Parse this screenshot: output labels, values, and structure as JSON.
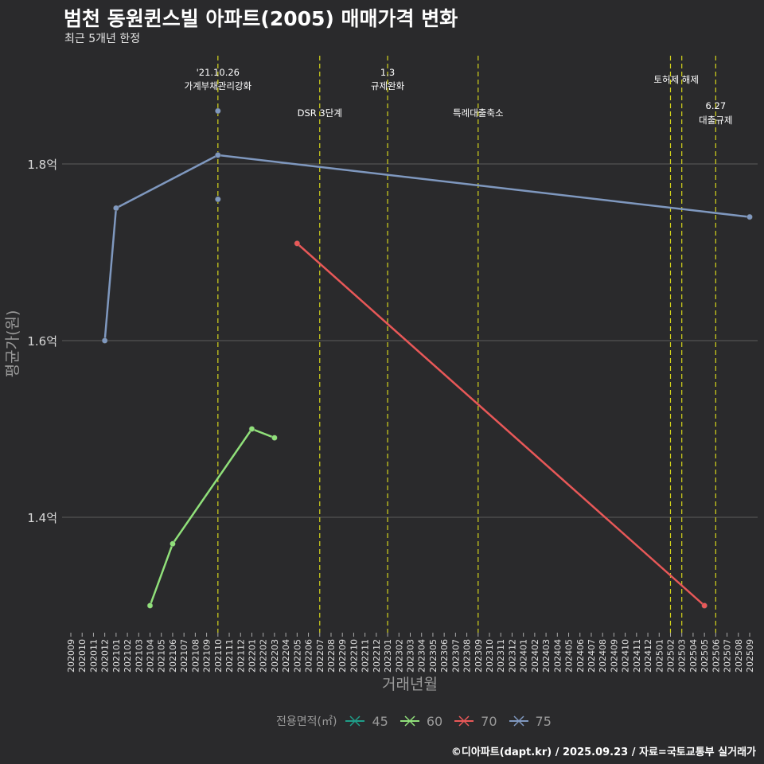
{
  "title": "범천 동원퀸스빌 아파트(2005) 매매가격 변화",
  "subtitle": "최근 5개년 한정",
  "footer": "©디아파트(dapt.kr) / 2025.09.23 / 자료=국토교통부 실거래가",
  "chart_data": {
    "type": "line",
    "title": "범천 동원퀸스빌 아파트(2005) 매매가격 변화",
    "xlabel": "거래년월",
    "ylabel": "평균가(원)",
    "ylim": [
      1.25,
      1.92
    ],
    "yticks": [
      {
        "v": 1.4,
        "label": "1.4억"
      },
      {
        "v": 1.6,
        "label": "1.6억"
      },
      {
        "v": 1.8,
        "label": "1.8억"
      }
    ],
    "grid": true,
    "x_start": "202009",
    "x_categories": [
      "202009",
      "202010",
      "202011",
      "202012",
      "202101",
      "202102",
      "202103",
      "202104",
      "202105",
      "202106",
      "202107",
      "202108",
      "202109",
      "202110",
      "202111",
      "202112",
      "202201",
      "202202",
      "202203",
      "202204",
      "202205",
      "202206",
      "202207",
      "202208",
      "202209",
      "202210",
      "202211",
      "202212",
      "202301",
      "202302",
      "202303",
      "202304",
      "202305",
      "202306",
      "202307",
      "202308",
      "202309",
      "202310",
      "202311",
      "202312",
      "202401",
      "202402",
      "202403",
      "202404",
      "202405",
      "202406",
      "202407",
      "202408",
      "202409",
      "202410",
      "202411",
      "202412",
      "202501",
      "202502",
      "202503",
      "202504",
      "202505",
      "202506",
      "202507",
      "202508",
      "202509"
    ],
    "legend_title": "전용면적(㎡)",
    "legend_position": "bottom",
    "series": [
      {
        "name": "45",
        "color": "#1f9e89",
        "points": []
      },
      {
        "name": "60",
        "color": "#90e07a",
        "points": [
          {
            "x": "202104",
            "y": 1.3
          },
          {
            "x": "202106",
            "y": 1.37
          },
          {
            "x": "202201",
            "y": 1.5
          },
          {
            "x": "202203",
            "y": 1.49
          }
        ]
      },
      {
        "name": "70",
        "color": "#e85858",
        "points": [
          {
            "x": "202205",
            "y": 1.71
          },
          {
            "x": "202505",
            "y": 1.3
          }
        ]
      },
      {
        "name": "75",
        "color": "#7f98bf",
        "points": [
          {
            "x": "202012",
            "y": 1.6
          },
          {
            "x": "202101",
            "y": 1.75
          },
          {
            "x": "202110",
            "y": 1.81
          },
          {
            "x": "202509",
            "y": 1.74
          }
        ],
        "extra_points": [
          {
            "x": "202110",
            "y": 1.86
          },
          {
            "x": "202110",
            "y": 1.76
          }
        ]
      }
    ],
    "annotations": [
      {
        "x": "202110",
        "lines": [
          "'21.10.26",
          "가계부채관리강화"
        ],
        "row": "top"
      },
      {
        "x": "202207",
        "lines": [
          "DSR 3단계"
        ],
        "row": "low"
      },
      {
        "x": "202301",
        "lines": [
          "1.3",
          "규제완화"
        ],
        "row": "top"
      },
      {
        "x": "202309",
        "lines": [
          "특례대출축소"
        ],
        "row": "low"
      },
      {
        "x": "202502",
        "lines": [],
        "row": "top"
      },
      {
        "x": "202503",
        "lines": [
          "토허제 해제"
        ],
        "row": "mid"
      },
      {
        "x": "202506",
        "lines": [
          "6.27",
          "대출규제"
        ],
        "row": "right"
      }
    ]
  }
}
